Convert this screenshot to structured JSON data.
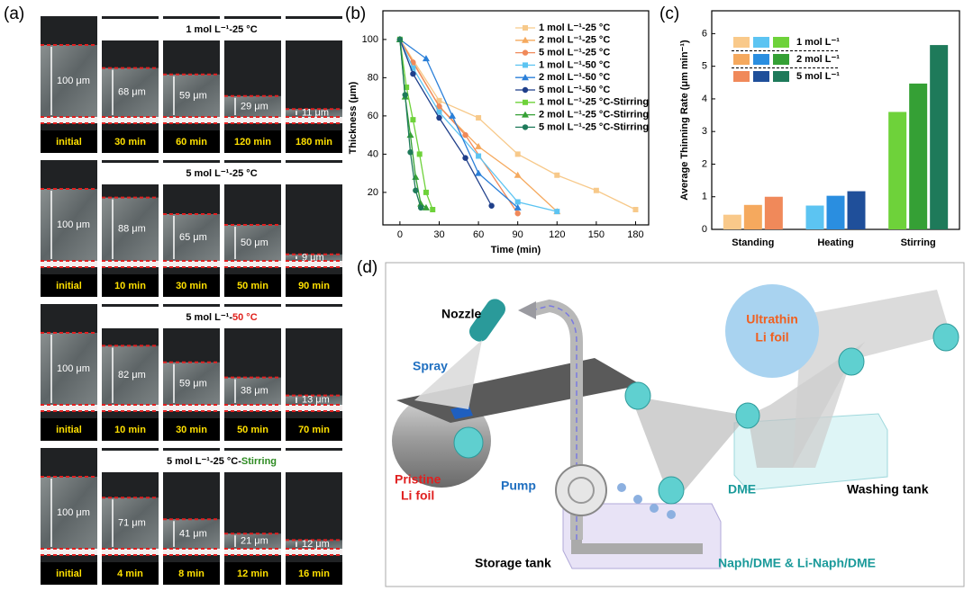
{
  "panel_labels": [
    "(a)",
    "(b)",
    "(c)",
    "(d)"
  ],
  "panel_a": {
    "rows": [
      {
        "title_parts": [
          {
            "text": "1 mol L⁻¹-25 °C",
            "color": "#000000"
          }
        ],
        "thickness": [
          "100 μm",
          "68 μm",
          "59 μm",
          "29 μm",
          "11 μm"
        ],
        "times": [
          "initial",
          "30 min",
          "60 min",
          "120 min",
          "180 min"
        ]
      },
      {
        "title_parts": [
          {
            "text": "5 mol L⁻¹-25 °C",
            "color": "#000000"
          }
        ],
        "thickness": [
          "100 μm",
          "88 μm",
          "65 μm",
          "50 μm",
          "9 μm"
        ],
        "times": [
          "initial",
          "10 min",
          "30 min",
          "50 min",
          "90 min"
        ]
      },
      {
        "title_parts": [
          {
            "text": "5 mol L⁻¹-",
            "color": "#000000"
          },
          {
            "text": "50 °C",
            "color": "#e0201b"
          }
        ],
        "thickness": [
          "100 μm",
          "82 μm",
          "59 μm",
          "38 μm",
          "13 μm"
        ],
        "times": [
          "initial",
          "10 min",
          "30 min",
          "50 min",
          "70 min"
        ]
      },
      {
        "title_parts": [
          {
            "text": "5 mol L⁻¹-25 °C-",
            "color": "#000000"
          },
          {
            "text": "Stirring",
            "color": "#2e8b22"
          }
        ],
        "thickness": [
          "100 μm",
          "71 μm",
          "41 μm",
          "21 μm",
          "12 μm"
        ],
        "times": [
          "initial",
          "4 min",
          "8 min",
          "12 min",
          "16 min"
        ]
      }
    ]
  },
  "chart_data": [
    {
      "type": "line",
      "x_label": "Time (min)",
      "y_label": "Thickness (μm)",
      "xlim": [
        -13,
        190
      ],
      "ylim": [
        3,
        115
      ],
      "xticks": [
        0,
        30,
        60,
        90,
        120,
        150,
        180
      ],
      "yticks": [
        20,
        40,
        60,
        80,
        100
      ],
      "series": [
        {
          "name": "1 mol L⁻¹-25 °C",
          "color": "#f7c98a",
          "marker": "square",
          "x": [
            0,
            30,
            60,
            90,
            120,
            150,
            180
          ],
          "values": [
            100,
            68,
            59,
            40,
            29,
            21,
            11
          ]
        },
        {
          "name": "2 mol L⁻¹-25 °C",
          "color": "#f5a95e",
          "marker": "triangle",
          "x": [
            0,
            30,
            60,
            90,
            120
          ],
          "values": [
            100,
            65,
            44,
            29,
            10
          ]
        },
        {
          "name": "5 mol L⁻¹-25 °C",
          "color": "#f0895a",
          "marker": "circle",
          "x": [
            0,
            10,
            30,
            50,
            90
          ],
          "values": [
            100,
            88,
            65,
            50,
            9
          ]
        },
        {
          "name": "1 mol L⁻¹-50 °C",
          "color": "#5cc4f2",
          "marker": "square",
          "x": [
            0,
            10,
            30,
            60,
            90,
            120
          ],
          "values": [
            100,
            85,
            62,
            39,
            15,
            10
          ]
        },
        {
          "name": "2 mol L⁻¹-50 °C",
          "color": "#2a7fd8",
          "marker": "triangle",
          "x": [
            0,
            20,
            40,
            60,
            90
          ],
          "values": [
            100,
            90,
            60,
            30,
            12
          ]
        },
        {
          "name": "5 mol L⁻¹-50 °C",
          "color": "#1f3f8a",
          "marker": "circle",
          "x": [
            0,
            10,
            30,
            50,
            70
          ],
          "values": [
            100,
            82,
            59,
            38,
            13
          ]
        },
        {
          "name": "1 mol L⁻¹-25 °C-Stirring",
          "color": "#6ed23a",
          "marker": "square",
          "x": [
            0,
            5,
            10,
            15,
            20,
            25
          ],
          "values": [
            100,
            75,
            58,
            40,
            20,
            11
          ]
        },
        {
          "name": "2 mol L⁻¹-25 °C-Stirring",
          "color": "#35a035",
          "marker": "triangle",
          "x": [
            0,
            4,
            8,
            12,
            16,
            20
          ],
          "values": [
            100,
            70,
            50,
            28,
            14,
            12
          ]
        },
        {
          "name": "5 mol L⁻¹-25 °C-Stirring",
          "color": "#1e7a5a",
          "marker": "circle",
          "x": [
            0,
            4,
            8,
            12,
            16
          ],
          "values": [
            100,
            71,
            41,
            21,
            12
          ]
        }
      ]
    },
    {
      "type": "bar",
      "y_label": "Average Thinning Rate (μm min⁻¹)",
      "categories": [
        "Standing",
        "Heating",
        "Stirring"
      ],
      "ylim": [
        0,
        6.7
      ],
      "yticks": [
        0,
        1,
        2,
        3,
        4,
        5,
        6
      ],
      "series": [
        {
          "name": "1 mol L⁻¹",
          "colors": [
            "#f9c98a",
            "#5cc4f2",
            "#6ed23a"
          ],
          "values": [
            0.45,
            0.73,
            3.6
          ]
        },
        {
          "name": "2 mol L⁻¹",
          "colors": [
            "#f5a95e",
            "#2a8ee0",
            "#35a035"
          ],
          "values": [
            0.75,
            1.03,
            4.47
          ]
        },
        {
          "name": "5 mol L⁻¹",
          "colors": [
            "#f0895a",
            "#1f4f9a",
            "#1e7a5a"
          ],
          "values": [
            1.0,
            1.17,
            5.65
          ]
        }
      ]
    }
  ],
  "diagram": {
    "nozzle": "Nozzle",
    "spray": "Spray",
    "pump": "Pump",
    "pristine": [
      "Pristine",
      "Li  foil"
    ],
    "storage_tank": "Storage tank",
    "solution": "Naph/DME & Li-Naph/DME",
    "dme": "DME",
    "washing_tank": "Washing tank",
    "ultrathin": [
      "Ultrathin",
      "Li  foil"
    ]
  }
}
